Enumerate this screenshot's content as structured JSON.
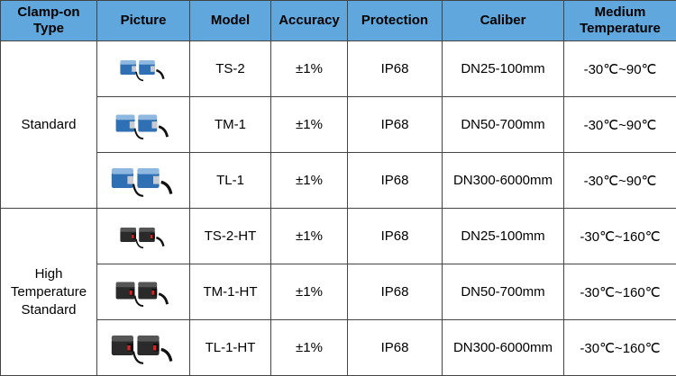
{
  "table": {
    "headers": [
      "Clamp-on Type",
      "Picture",
      "Model",
      "Accuracy",
      "Protection",
      "Caliber",
      "Medium Temperature"
    ],
    "groups": [
      {
        "type": "Standard",
        "rows": [
          [
            "TS-2",
            "±1%",
            "IP68",
            "DN25-100mm",
            "-30℃~90℃"
          ],
          [
            "TM-1",
            "±1%",
            "IP68",
            "DN50-700mm",
            "-30℃~90℃"
          ],
          [
            "TL-1",
            "±1%",
            "IP68",
            "DN300-6000mm",
            "-30℃~90℃"
          ]
        ]
      },
      {
        "type": "High Temperature Standard",
        "rows": [
          [
            "TS-2-HT",
            "±1%",
            "IP68",
            "DN25-100mm",
            "-30℃~160℃"
          ],
          [
            "TM-1-HT",
            "±1%",
            "IP68",
            "DN50-700mm",
            "-30℃~160℃"
          ],
          [
            "TL-1-HT",
            "±1%",
            "IP68",
            "DN300-6000mm",
            "-30℃~160℃"
          ]
        ]
      }
    ]
  }
}
